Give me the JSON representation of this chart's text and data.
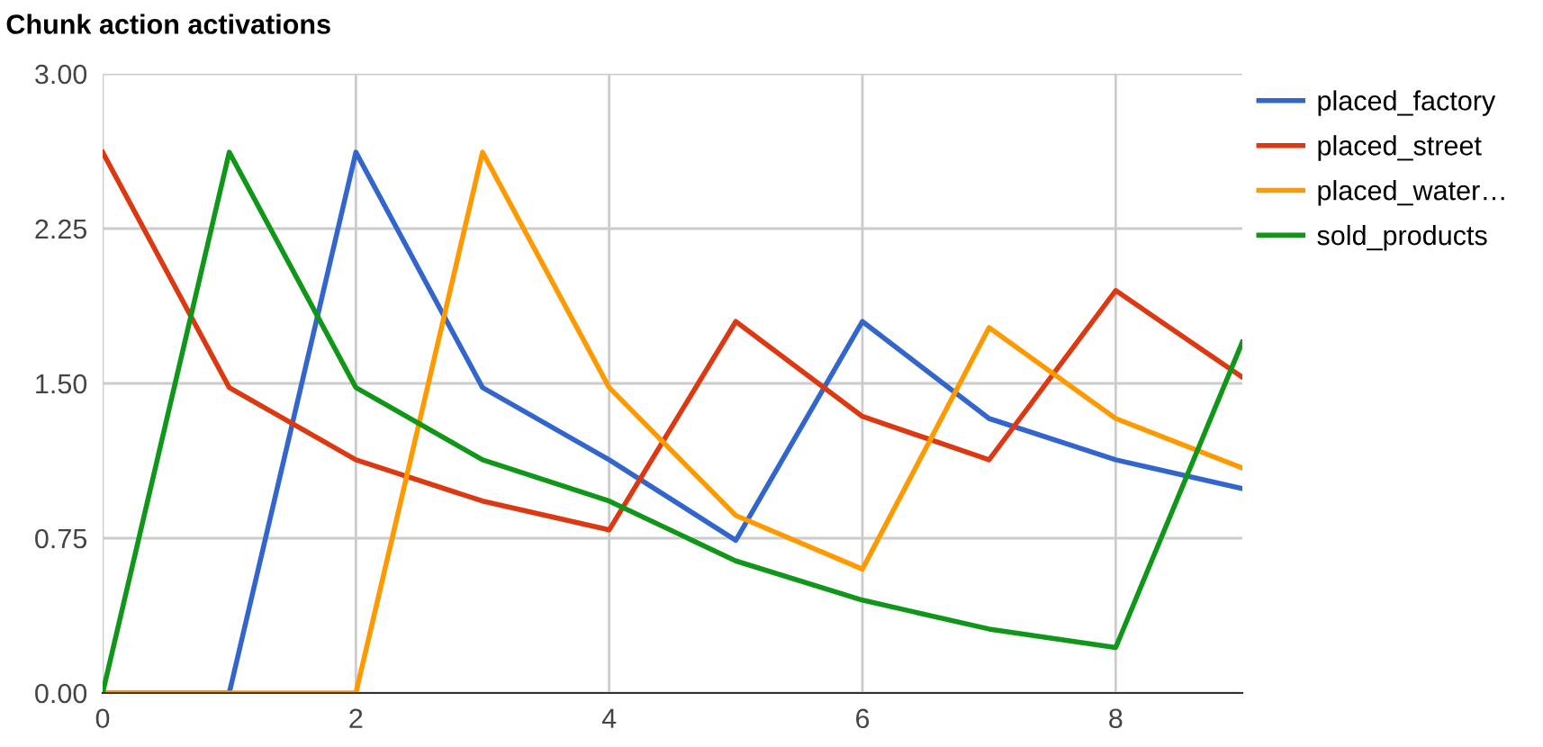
{
  "chart_data": {
    "type": "line",
    "title": "Chunk action activations",
    "x": [
      0,
      1,
      2,
      3,
      4,
      5,
      6,
      7,
      8,
      9
    ],
    "series": [
      {
        "name": "placed_factory",
        "color": "#3366cc",
        "values": [
          0,
          0,
          2.62,
          1.48,
          1.13,
          0.74,
          1.8,
          1.33,
          1.13,
          0.99
        ]
      },
      {
        "name": "placed_street",
        "color": "#dc3912",
        "values": [
          2.62,
          1.48,
          1.13,
          0.93,
          0.79,
          1.8,
          1.34,
          1.13,
          1.95,
          1.53
        ]
      },
      {
        "name": "placed_water…",
        "color": "#ff9900",
        "values": [
          0,
          0,
          0,
          2.62,
          1.48,
          0.86,
          0.6,
          1.77,
          1.33,
          1.09
        ]
      },
      {
        "name": "sold_products",
        "color": "#109618",
        "values": [
          0,
          2.62,
          1.48,
          1.13,
          0.93,
          0.64,
          0.45,
          0.31,
          0.22,
          1.7
        ]
      }
    ],
    "xlim": [
      0,
      9
    ],
    "xticks": [
      0,
      2,
      4,
      6,
      8
    ],
    "ylim": [
      0,
      3
    ],
    "yticks": [
      {
        "value": 0,
        "label": "0.00"
      },
      {
        "value": 0.75,
        "label": "0.75"
      },
      {
        "value": 1.5,
        "label": "1.50"
      },
      {
        "value": 2.25,
        "label": "2.25"
      },
      {
        "value": 3,
        "label": "3.00"
      }
    ],
    "grid": true,
    "legend": "right"
  }
}
